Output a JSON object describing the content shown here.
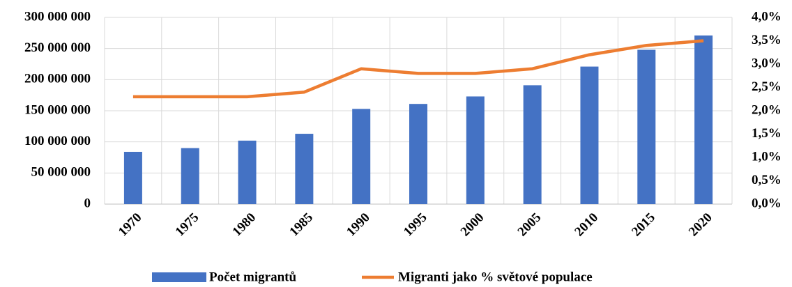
{
  "chart_data": {
    "type": "bar-line",
    "categories": [
      "1970",
      "1975",
      "1980",
      "1985",
      "1990",
      "1995",
      "2000",
      "2005",
      "2010",
      "2015",
      "2020"
    ],
    "series": [
      {
        "name": "Počet migrantů",
        "type": "bar",
        "color": "#4472c4",
        "values": [
          84000000,
          90000000,
          102000000,
          113000000,
          153000000,
          161000000,
          173000000,
          191000000,
          221000000,
          248000000,
          271000000
        ]
      },
      {
        "name": "Migranti jako % světové populace",
        "type": "line",
        "axis": "y2",
        "color": "#ed7d31",
        "values": [
          2.3,
          2.3,
          2.3,
          2.4,
          2.9,
          2.8,
          2.8,
          2.9,
          3.2,
          3.4,
          3.5
        ]
      }
    ],
    "ylim": [
      0,
      300000000
    ],
    "yticks": [
      0,
      {
        "value": 50000000,
        "label": "50 000 000"
      },
      {
        "value": 100000000,
        "label": "100 000 000"
      },
      {
        "value": 150000000,
        "label": "150 000 000"
      },
      {
        "value": 200000000,
        "label": "200 000 000"
      },
      {
        "value": 250000000,
        "label": "250 000 000"
      },
      {
        "value": 300000000,
        "label": "300 000 000"
      }
    ],
    "y2lim": [
      0,
      4
    ],
    "y2ticks": [
      {
        "value": 0,
        "label": "0,0%"
      },
      {
        "value": 0.5,
        "label": "0,5%"
      },
      {
        "value": 1,
        "label": "1,0%"
      },
      {
        "value": 1.5,
        "label": "1,5%"
      },
      {
        "value": 2,
        "label": "2,0%"
      },
      {
        "value": 2.5,
        "label": "2,5%"
      },
      {
        "value": 3,
        "label": "3,0%"
      },
      {
        "value": 3.5,
        "label": "3,5%"
      },
      {
        "value": 4,
        "label": "4,0%"
      }
    ],
    "grid": true,
    "legend": "bottom"
  }
}
